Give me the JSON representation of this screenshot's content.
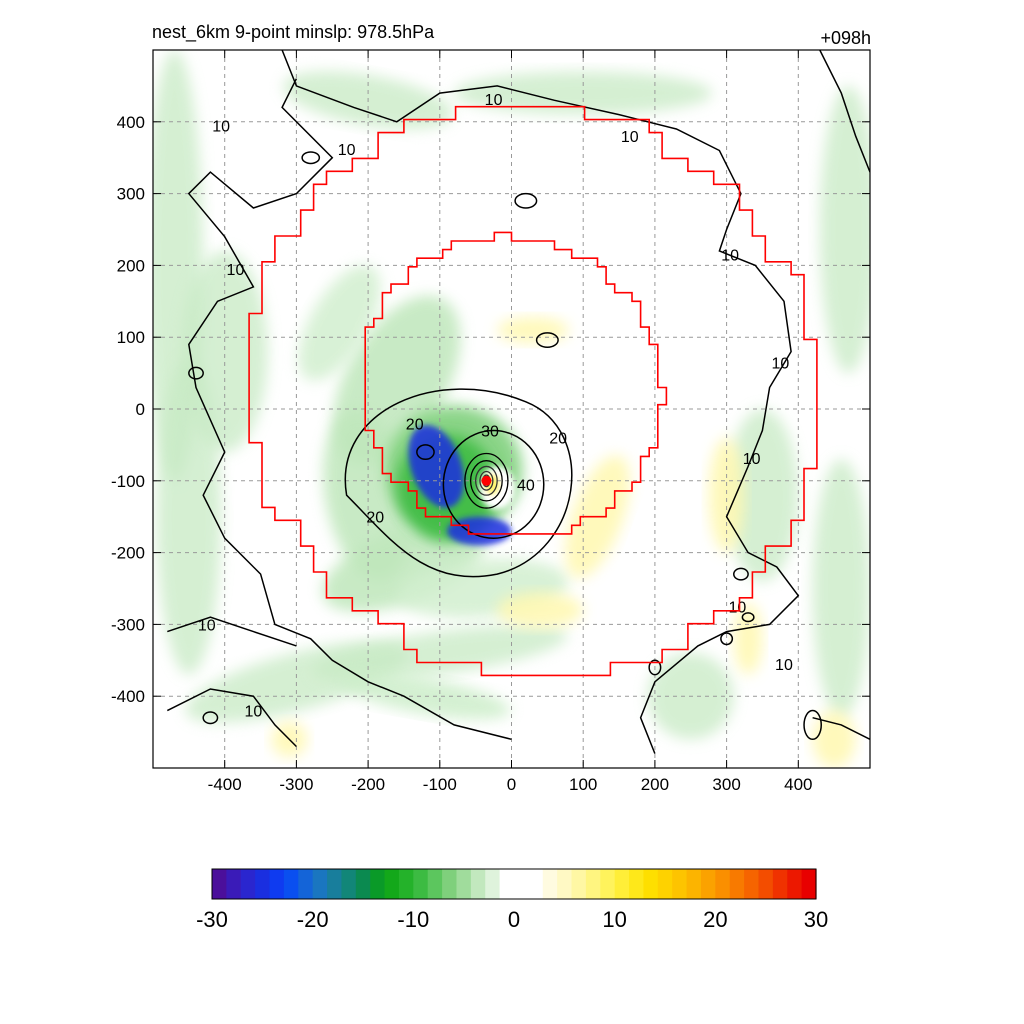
{
  "title_left": "nest_6km  9-point minslp: 978.5hPa",
  "title_right": "+098h",
  "chart_data": {
    "type": "heatmap",
    "title": "nest_6km  9-point minslp: 978.5hPa",
    "forecast_hour": "+098h",
    "xlabel": "",
    "ylabel": "",
    "xlim": [
      -500,
      500
    ],
    "ylim": [
      -500,
      500
    ],
    "x_ticks": [
      -400,
      -300,
      -200,
      -100,
      0,
      100,
      200,
      300,
      400
    ],
    "y_ticks": [
      400,
      300,
      200,
      100,
      0,
      -100,
      -200,
      -300,
      -400
    ],
    "grid": true,
    "storm_center": {
      "x": -35,
      "y": -100
    },
    "contour_levels": [
      10,
      20,
      30,
      40
    ],
    "contour_labels": [
      {
        "text": "10",
        "x": -25,
        "y": 432
      },
      {
        "text": "10",
        "x": 165,
        "y": 380
      },
      {
        "text": "10",
        "x": -405,
        "y": 395
      },
      {
        "text": "10",
        "x": -230,
        "y": 362
      },
      {
        "text": "10",
        "x": -385,
        "y": 195
      },
      {
        "text": "10",
        "x": 305,
        "y": 215
      },
      {
        "text": "10",
        "x": 375,
        "y": 65
      },
      {
        "text": "10",
        "x": 335,
        "y": -68
      },
      {
        "text": "10",
        "x": -425,
        "y": -300
      },
      {
        "text": "10",
        "x": -360,
        "y": -420
      },
      {
        "text": "10",
        "x": 315,
        "y": -275
      },
      {
        "text": "10",
        "x": 380,
        "y": -355
      },
      {
        "text": "20",
        "x": -135,
        "y": -20
      },
      {
        "text": "20",
        "x": 65,
        "y": -40
      },
      {
        "text": "20",
        "x": -190,
        "y": -150
      },
      {
        "text": "30",
        "x": -30,
        "y": -30
      },
      {
        "text": "40",
        "x": 20,
        "y": -105
      }
    ],
    "colorbar": {
      "ticks": [
        -30,
        -20,
        -10,
        0,
        10,
        20,
        30
      ],
      "range": [
        -30,
        30
      ],
      "colors": [
        "#4b0f9b",
        "#3a1bb8",
        "#2a26cf",
        "#1a2fe0",
        "#0f3bf0",
        "#0a4ff0",
        "#1464d8",
        "#1a76c0",
        "#187e9c",
        "#128678",
        "#0b8a50",
        "#0a9a28",
        "#13a81a",
        "#24b22a",
        "#3cbb42",
        "#5cc65e",
        "#7fd07c",
        "#a0dc9c",
        "#c2e8be",
        "#dff3dc",
        "#ffffff",
        "#ffffff",
        "#ffffff",
        "#fffbe0",
        "#fff9c4",
        "#fff7a4",
        "#fff580",
        "#fff35c",
        "#ffee38",
        "#fee81a",
        "#fedf00",
        "#fed200",
        "#fdc400",
        "#fcb400",
        "#fba200",
        "#fa8f00",
        "#f87a00",
        "#f66400",
        "#f34d00",
        "#f03200",
        "#ec1800",
        "#e80000"
      ]
    }
  }
}
